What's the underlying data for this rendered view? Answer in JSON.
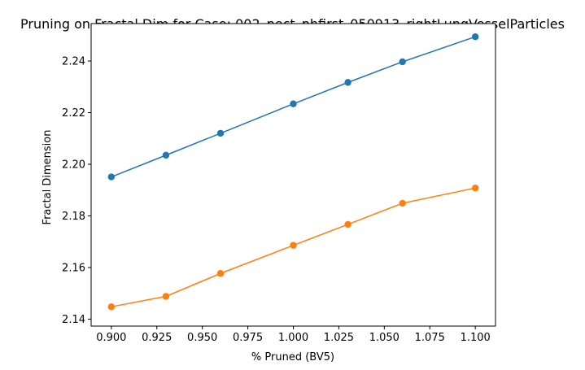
{
  "chart_data": {
    "type": "line",
    "title": "Pruning on Fractal Dim for Case: 002_pect_phfirst_050913_rightLungVesselParticles",
    "xlabel": "% Pruned (BV5)",
    "ylabel": "Fractal Dimension",
    "xlim": [
      0.8889,
      1.1111
    ],
    "ylim": [
      2.1373,
      2.2545
    ],
    "xticks": [
      "0.900",
      "0.925",
      "0.950",
      "0.975",
      "1.000",
      "1.025",
      "1.050",
      "1.075",
      "1.100"
    ],
    "yticks": [
      "2.14",
      "2.16",
      "2.18",
      "2.20",
      "2.22",
      "2.24"
    ],
    "grid": false,
    "legend": "none",
    "x": [
      0.9,
      0.93,
      0.96,
      1.0,
      1.03,
      1.06,
      1.1
    ],
    "series": [
      {
        "color": "#1f77b4",
        "marker": "circle",
        "values": [
          2.1951,
          2.2035,
          2.212,
          2.2234,
          2.2317,
          2.2397,
          2.2494
        ]
      },
      {
        "color": "#ff7f0e",
        "marker": "circle",
        "values": [
          2.1448,
          2.1488,
          2.1577,
          2.1686,
          2.1767,
          2.1849,
          2.1908
        ]
      }
    ]
  }
}
